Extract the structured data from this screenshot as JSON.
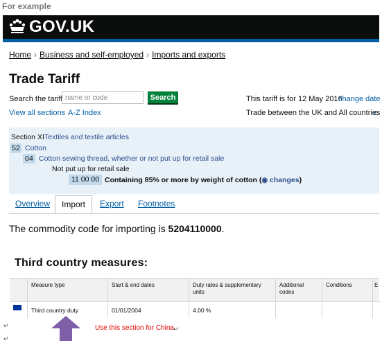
{
  "caption": "For example",
  "header": {
    "logo_text": "GOV.UK"
  },
  "breadcrumb": [
    "Home",
    "Business and self-employed",
    "Imports and exports"
  ],
  "page_title": "Trade Tariff",
  "search": {
    "label": "Search the tariff",
    "placeholder": "name or code",
    "button": "Search"
  },
  "tariff_info": {
    "date_text": "This tariff is for 12 May 2016",
    "change_date": "change date",
    "trade_text": "Trade between the UK and All countries",
    "trade_change": "c"
  },
  "nav_links": {
    "view_all": "View all sections",
    "az": "A-Z Index"
  },
  "tree": {
    "section_label": "Section XI",
    "section_title": "Textiles and textile articles",
    "chapter_code": "52",
    "chapter_title": "Cotton",
    "heading_code": "04",
    "heading_title": "Cotton sewing thread, whether or not put up for retail sale",
    "sub_title": "Not put up for retail sale",
    "commodity_code": "11 00 00",
    "commodity_title": "Containing 85% or more by weight of cotton (",
    "rss_icon": "rss-icon",
    "changes_link": "changes",
    "close_paren": ")"
  },
  "tabs": [
    "Overview",
    "Import",
    "Export",
    "Footnotes"
  ],
  "active_tab": "Import",
  "commodity_line": {
    "prefix": "The commodity code for importing is ",
    "code": "5204110000",
    "suffix": "."
  },
  "measures_title": "Third country measures:",
  "table": {
    "headers": [
      "Measure type",
      "Start & end dates",
      "Duty rates & supplementary units",
      "Additional codes",
      "Conditions",
      "E"
    ],
    "rows": [
      {
        "measure_type": "Third country duty",
        "dates": "01/01/2004",
        "duty": "4.00 %",
        "additional": "",
        "conditions": "",
        "e": ""
      }
    ]
  },
  "annotation": {
    "note": "Use this section for China",
    "arrow_color": "#7f5fa8"
  },
  "paragraph_marks": [
    "↵",
    "↵",
    "↵"
  ],
  "colors": {
    "gov_black": "#0b0c0c",
    "gov_blue": "#005ea5",
    "search_green": "#00823b",
    "tree_bg": "#e8f1f8"
  }
}
